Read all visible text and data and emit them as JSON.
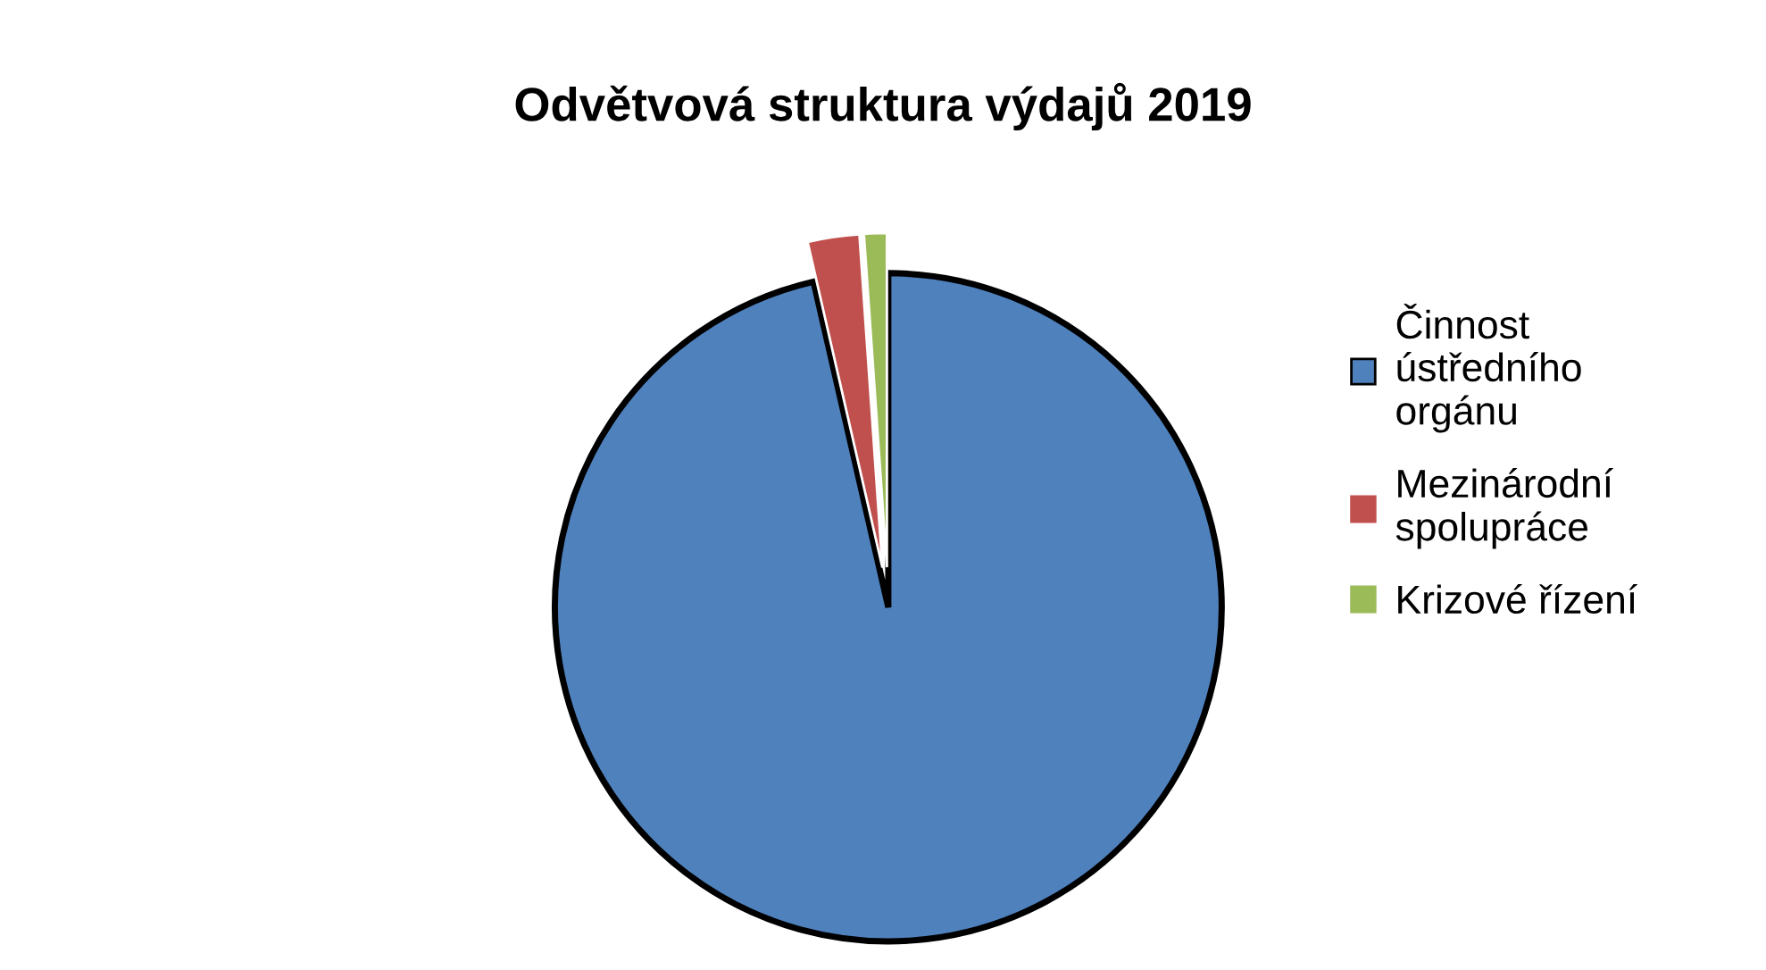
{
  "chart_data": {
    "type": "pie",
    "title": "Odvětvová struktura výdajů 2019",
    "categories": [
      "Činnost ústředního orgánu",
      "Mezinárodní spolupráce",
      "Krizové řízení"
    ],
    "values": [
      96.4,
      2.5,
      1.1
    ],
    "colors": [
      "#4f81bd",
      "#c0504d",
      "#9bbb59"
    ],
    "legend": "right"
  }
}
